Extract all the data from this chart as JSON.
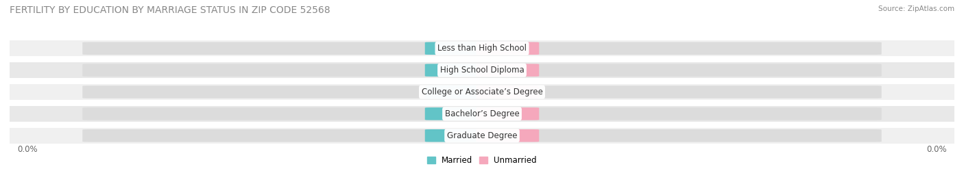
{
  "title": "FERTILITY BY EDUCATION BY MARRIAGE STATUS IN ZIP CODE 52568",
  "source": "Source: ZipAtlas.com",
  "categories": [
    "Less than High School",
    "High School Diploma",
    "College or Associate’s Degree",
    "Bachelor’s Degree",
    "Graduate Degree"
  ],
  "married_values": [
    0.0,
    0.0,
    0.0,
    0.0,
    0.0
  ],
  "unmarried_values": [
    0.0,
    0.0,
    0.0,
    0.0,
    0.0
  ],
  "married_color": "#62C4C7",
  "unmarried_color": "#F5A8BC",
  "married_label": "Married",
  "unmarried_label": "Unmarried",
  "row_bg_even": "#F0F0F0",
  "row_bg_odd": "#E8E8E8",
  "bar_bg_color": "#DCDCDC",
  "title_fontsize": 10,
  "source_fontsize": 7.5,
  "label_fontsize": 8.5,
  "value_fontsize": 7.5,
  "background_color": "#FFFFFF",
  "axis_label_left": "0.0%",
  "axis_label_right": "0.0%"
}
